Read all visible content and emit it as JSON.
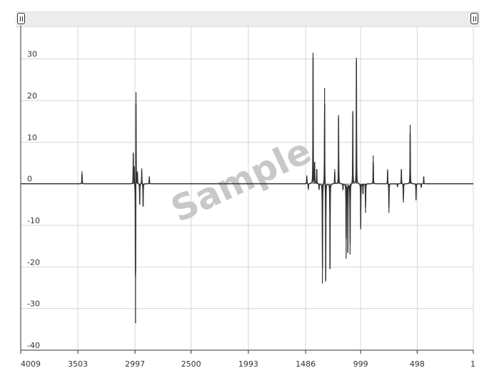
{
  "watermark": "Sample",
  "scroll_handles": [
    "left",
    "right"
  ],
  "chart_data": {
    "type": "line",
    "title": "",
    "xlabel": "",
    "ylabel": "",
    "x_reversed": true,
    "xlim": [
      4009,
      1
    ],
    "ylim": [
      -40,
      38
    ],
    "x_ticks": [
      "4009",
      "3503",
      "2997",
      "2500",
      "1993",
      "1486",
      "999",
      "498",
      "1"
    ],
    "y_ticks": [
      "30",
      "20",
      "10",
      "0",
      "-10",
      "-20",
      "-30",
      "-40"
    ],
    "grid": true,
    "line_color": "#333333",
    "peaks": [
      {
        "x": 3466,
        "y": 3.0
      },
      {
        "x": 3012,
        "y": 7.5
      },
      {
        "x": 3004,
        "y": 4.2
      },
      {
        "x": 2992,
        "y": -33.5
      },
      {
        "x": 2988,
        "y": 22.0
      },
      {
        "x": 2975,
        "y": 3.0
      },
      {
        "x": 2955,
        "y": -5.0
      },
      {
        "x": 2937,
        "y": 3.7
      },
      {
        "x": 2925,
        "y": -5.5
      },
      {
        "x": 2870,
        "y": 1.8
      },
      {
        "x": 1475,
        "y": 2.0
      },
      {
        "x": 1462,
        "y": -1.5
      },
      {
        "x": 1420,
        "y": 31.5
      },
      {
        "x": 1406,
        "y": 5.0
      },
      {
        "x": 1387,
        "y": 3.5
      },
      {
        "x": 1367,
        "y": -1.5
      },
      {
        "x": 1337,
        "y": -24.0
      },
      {
        "x": 1318,
        "y": 23.0
      },
      {
        "x": 1308,
        "y": -23.5
      },
      {
        "x": 1270,
        "y": -20.5
      },
      {
        "x": 1228,
        "y": 3.5
      },
      {
        "x": 1194,
        "y": 16.5
      },
      {
        "x": 1155,
        "y": -1.5
      },
      {
        "x": 1127,
        "y": -18.0
      },
      {
        "x": 1112,
        "y": -16.5
      },
      {
        "x": 1092,
        "y": -17.0
      },
      {
        "x": 1068,
        "y": 17.5
      },
      {
        "x": 1036,
        "y": 30.3
      },
      {
        "x": 998,
        "y": -11.0
      },
      {
        "x": 978,
        "y": -2.5
      },
      {
        "x": 955,
        "y": -7.0
      },
      {
        "x": 887,
        "y": 6.8
      },
      {
        "x": 760,
        "y": 3.5
      },
      {
        "x": 748,
        "y": -7.0
      },
      {
        "x": 673,
        "y": -0.8
      },
      {
        "x": 638,
        "y": 3.5
      },
      {
        "x": 620,
        "y": -4.5
      },
      {
        "x": 560,
        "y": 14.2
      },
      {
        "x": 508,
        "y": -4.0
      },
      {
        "x": 462,
        "y": -1.0
      },
      {
        "x": 440,
        "y": 1.8
      }
    ]
  }
}
